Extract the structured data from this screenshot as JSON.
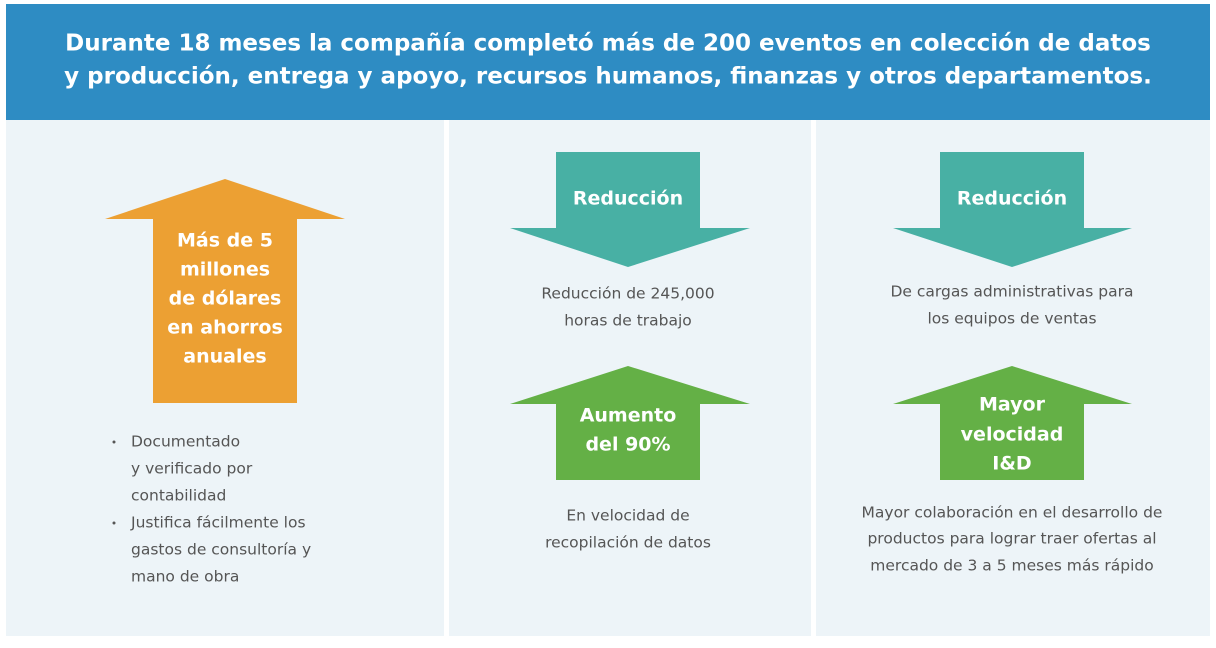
{
  "header": {
    "title": [
      "Durante 18 meses la compañía completó más de 200 eventos en colección de datos",
      "y producción, entrega y apoyo, recursos humanos, finanzas y otros departamentos."
    ]
  },
  "columns": [
    {
      "arrow": {
        "label": [
          "Más de 5",
          "millones",
          "de dólares",
          "en ahorros",
          "anuales"
        ]
      },
      "bullets": [
        [
          "Documentado",
          "y verificado por",
          "contabilidad"
        ],
        [
          "Justifica fácilmente los",
          "gastos de consultoría y",
          "mano de obra"
        ]
      ]
    },
    {
      "items": [
        {
          "arrow": {
            "label": [
              "Reducción"
            ]
          },
          "text": [
            "Reducción de 245,000",
            "horas de trabajo"
          ]
        },
        {
          "arrow": {
            "label": [
              "Aumento",
              "del 90%"
            ]
          },
          "text": [
            "En velocidad de",
            "recopilación de datos"
          ]
        }
      ]
    },
    {
      "items": [
        {
          "arrow": {
            "label": [
              "Reducción"
            ]
          },
          "text": [
            "De cargas administrativas para",
            "los equipos de ventas"
          ]
        },
        {
          "arrow": {
            "label": [
              "Mayor",
              "velocidad",
              "I&D"
            ]
          },
          "text": [
            "Mayor colaboración en el desarrollo de",
            "productos para lograr traer ofertas al",
            "mercado de 3 a 5 meses más rápido"
          ]
        }
      ]
    }
  ]
}
